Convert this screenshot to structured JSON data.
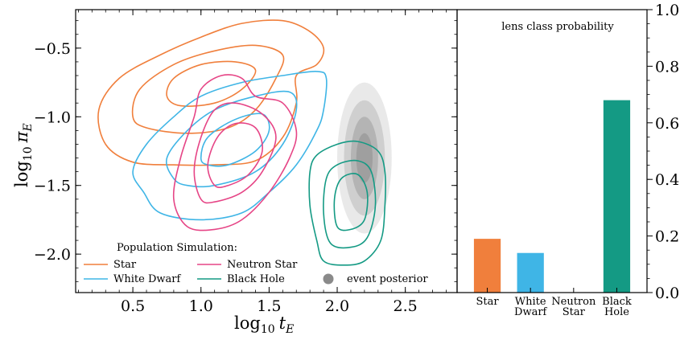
{
  "chart_data": [
    {
      "type": "contour",
      "xlabel": "log$_{10}\\,t_E$",
      "xlabel_main": "log",
      "xlabel_sub": "10",
      "xlabel_var": "t",
      "xlabel_var_sub": "E",
      "ylabel_main": "log",
      "ylabel_sub": "10",
      "ylabel_var": "π",
      "ylabel_var_sub": "E",
      "xlim": [
        0.08,
        2.88
      ],
      "ylim": [
        -2.28,
        -0.22
      ],
      "x_ticks": [
        0.5,
        1.0,
        1.5,
        2.0,
        2.5
      ],
      "x_tick_labels": [
        "0.5",
        "1.0",
        "1.5",
        "2.0",
        "2.5"
      ],
      "y_ticks": [
        -0.5,
        -1.0,
        -1.5,
        -2.0
      ],
      "y_tick_labels": [
        "−0.5",
        "−1.0",
        "−1.5",
        "−2.0"
      ],
      "legend_title": "Population Simulation:",
      "legend_placement": "lower-left",
      "series": [
        {
          "name": "Star",
          "color": "#f07f3c",
          "contours": [
            [
              [
                0.3,
                -1.2
              ],
              [
                0.25,
                -0.95
              ],
              [
                0.4,
                -0.72
              ],
              [
                0.7,
                -0.55
              ],
              [
                1.0,
                -0.42
              ],
              [
                1.3,
                -0.32
              ],
              [
                1.6,
                -0.3
              ],
              [
                1.8,
                -0.38
              ],
              [
                1.9,
                -0.5
              ],
              [
                1.85,
                -0.62
              ],
              [
                1.7,
                -0.7
              ],
              [
                1.7,
                -0.9
              ],
              [
                1.6,
                -1.15
              ],
              [
                1.4,
                -1.32
              ],
              [
                1.1,
                -1.35
              ],
              [
                0.8,
                -1.35
              ],
              [
                0.5,
                -1.33
              ],
              [
                0.3,
                -1.2
              ]
            ],
            [
              [
                0.5,
                -1.0
              ],
              [
                0.55,
                -0.8
              ],
              [
                0.8,
                -0.62
              ],
              [
                1.1,
                -0.52
              ],
              [
                1.4,
                -0.48
              ],
              [
                1.6,
                -0.55
              ],
              [
                1.55,
                -0.72
              ],
              [
                1.4,
                -0.95
              ],
              [
                1.2,
                -1.08
              ],
              [
                0.9,
                -1.12
              ],
              [
                0.6,
                -1.08
              ],
              [
                0.5,
                -1.0
              ]
            ],
            [
              [
                0.75,
                -0.85
              ],
              [
                0.8,
                -0.72
              ],
              [
                1.0,
                -0.62
              ],
              [
                1.25,
                -0.6
              ],
              [
                1.4,
                -0.66
              ],
              [
                1.3,
                -0.8
              ],
              [
                1.1,
                -0.9
              ],
              [
                0.85,
                -0.92
              ],
              [
                0.75,
                -0.85
              ]
            ]
          ]
        },
        {
          "name": "White Dwarf",
          "color": "#3fb5e6",
          "contours": [
            [
              [
                0.58,
                -1.55
              ],
              [
                0.5,
                -1.4
              ],
              [
                0.6,
                -1.2
              ],
              [
                0.8,
                -1.0
              ],
              [
                1.0,
                -0.85
              ],
              [
                1.3,
                -0.75
              ],
              [
                1.6,
                -0.7
              ],
              [
                1.85,
                -0.67
              ],
              [
                1.92,
                -0.72
              ],
              [
                1.9,
                -0.95
              ],
              [
                1.85,
                -1.1
              ],
              [
                1.7,
                -1.35
              ],
              [
                1.5,
                -1.55
              ],
              [
                1.3,
                -1.7
              ],
              [
                1.0,
                -1.75
              ],
              [
                0.7,
                -1.7
              ],
              [
                0.58,
                -1.55
              ]
            ],
            [
              [
                0.8,
                -1.45
              ],
              [
                0.75,
                -1.3
              ],
              [
                0.9,
                -1.1
              ],
              [
                1.1,
                -0.95
              ],
              [
                1.4,
                -0.85
              ],
              [
                1.65,
                -0.82
              ],
              [
                1.7,
                -0.95
              ],
              [
                1.6,
                -1.2
              ],
              [
                1.4,
                -1.4
              ],
              [
                1.1,
                -1.5
              ],
              [
                0.9,
                -1.5
              ],
              [
                0.8,
                -1.45
              ]
            ],
            [
              [
                1.0,
                -1.3
              ],
              [
                1.05,
                -1.15
              ],
              [
                1.25,
                -1.02
              ],
              [
                1.45,
                -0.98
              ],
              [
                1.5,
                -1.1
              ],
              [
                1.4,
                -1.25
              ],
              [
                1.2,
                -1.35
              ],
              [
                1.05,
                -1.35
              ],
              [
                1.0,
                -1.3
              ]
            ]
          ]
        },
        {
          "name": "Neutron Star",
          "color": "#e64586",
          "contours": [
            [
              [
                0.9,
                -1.8
              ],
              [
                0.8,
                -1.6
              ],
              [
                0.85,
                -1.3
              ],
              [
                0.95,
                -1.0
              ],
              [
                1.0,
                -0.8
              ],
              [
                1.15,
                -0.7
              ],
              [
                1.3,
                -0.72
              ],
              [
                1.4,
                -0.85
              ],
              [
                1.6,
                -0.9
              ],
              [
                1.7,
                -1.1
              ],
              [
                1.65,
                -1.3
              ],
              [
                1.5,
                -1.55
              ],
              [
                1.3,
                -1.75
              ],
              [
                1.1,
                -1.82
              ],
              [
                0.9,
                -1.8
              ]
            ],
            [
              [
                1.0,
                -1.6
              ],
              [
                0.95,
                -1.4
              ],
              [
                1.0,
                -1.15
              ],
              [
                1.1,
                -0.95
              ],
              [
                1.25,
                -0.9
              ],
              [
                1.45,
                -0.98
              ],
              [
                1.55,
                -1.15
              ],
              [
                1.45,
                -1.4
              ],
              [
                1.3,
                -1.55
              ],
              [
                1.1,
                -1.62
              ],
              [
                1.0,
                -1.6
              ]
            ],
            [
              [
                1.1,
                -1.5
              ],
              [
                1.05,
                -1.35
              ],
              [
                1.12,
                -1.15
              ],
              [
                1.25,
                -1.05
              ],
              [
                1.4,
                -1.08
              ],
              [
                1.45,
                -1.25
              ],
              [
                1.35,
                -1.42
              ],
              [
                1.2,
                -1.5
              ],
              [
                1.1,
                -1.5
              ]
            ]
          ]
        },
        {
          "name": "Black Hole",
          "color": "#149a84",
          "contours": [
            [
              [
                1.9,
                -2.05
              ],
              [
                1.85,
                -1.9
              ],
              [
                1.8,
                -1.65
              ],
              [
                1.8,
                -1.4
              ],
              [
                1.85,
                -1.28
              ],
              [
                2.0,
                -1.2
              ],
              [
                2.15,
                -1.18
              ],
              [
                2.3,
                -1.25
              ],
              [
                2.35,
                -1.4
              ],
              [
                2.35,
                -1.65
              ],
              [
                2.32,
                -1.9
              ],
              [
                2.2,
                -2.05
              ],
              [
                2.05,
                -2.08
              ],
              [
                1.9,
                -2.05
              ]
            ],
            [
              [
                1.95,
                -1.92
              ],
              [
                1.9,
                -1.7
              ],
              [
                1.92,
                -1.45
              ],
              [
                2.0,
                -1.35
              ],
              [
                2.15,
                -1.32
              ],
              [
                2.25,
                -1.4
              ],
              [
                2.28,
                -1.65
              ],
              [
                2.22,
                -1.88
              ],
              [
                2.1,
                -1.95
              ],
              [
                1.95,
                -1.92
              ]
            ],
            [
              [
                2.0,
                -1.8
              ],
              [
                1.98,
                -1.6
              ],
              [
                2.03,
                -1.45
              ],
              [
                2.15,
                -1.42
              ],
              [
                2.22,
                -1.55
              ],
              [
                2.2,
                -1.75
              ],
              [
                2.1,
                -1.82
              ],
              [
                2.0,
                -1.8
              ]
            ]
          ]
        }
      ],
      "posterior": {
        "name": "event posterior",
        "color": "#8a8a8a",
        "center": [
          2.2,
          -1.3
        ],
        "levels": [
          {
            "rx": 0.2,
            "ry": 0.55,
            "opacity": 0.35
          },
          {
            "rx": 0.15,
            "ry": 0.42,
            "opacity": 0.5
          },
          {
            "rx": 0.1,
            "ry": 0.3,
            "opacity": 0.7
          },
          {
            "rx": 0.06,
            "ry": 0.18,
            "opacity": 0.9
          }
        ]
      }
    },
    {
      "type": "bar",
      "title": "lens class probability",
      "categories": [
        "Star",
        "White Dwarf",
        "Neutron Star",
        "Black Hole"
      ],
      "category_lines": [
        [
          "Star"
        ],
        [
          "White",
          "Dwarf"
        ],
        [
          "Neutron",
          "Star"
        ],
        [
          "Black",
          "Hole"
        ]
      ],
      "values": [
        0.19,
        0.14,
        0.0,
        0.68
      ],
      "colors": [
        "#f07f3c",
        "#3fb5e6",
        "#e64586",
        "#149a84"
      ],
      "ylim": [
        0.0,
        1.0
      ],
      "y_ticks": [
        0.0,
        0.2,
        0.4,
        0.6,
        0.8,
        1.0
      ],
      "y_tick_labels": [
        "0.0",
        "0.2",
        "0.4",
        "0.6",
        "0.8",
        "1.0"
      ],
      "y_axis_side": "right"
    }
  ]
}
